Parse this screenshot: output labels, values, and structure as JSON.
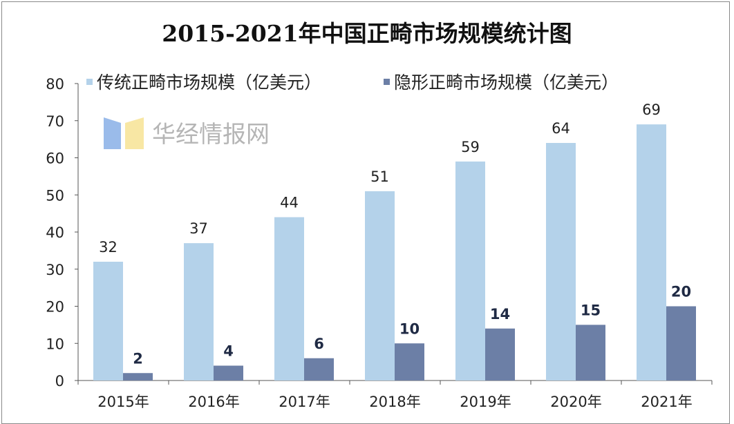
{
  "chart_data": {
    "type": "bar",
    "title": "2015-2021年中国正畸市场规模统计图",
    "categories": [
      "2015年",
      "2016年",
      "2017年",
      "2018年",
      "2019年",
      "2020年",
      "2021年"
    ],
    "series": [
      {
        "name": "传统正畸市场规模（亿美元）",
        "values": [
          32,
          37,
          44,
          51,
          59,
          64,
          69
        ],
        "color": "#b4d2ea"
      },
      {
        "name": "隐形正畸市场规模（亿美元）",
        "values": [
          2,
          4,
          6,
          10,
          14,
          15,
          20
        ],
        "color": "#6c7fa6"
      }
    ],
    "ylim": [
      0,
      80
    ],
    "yticks": [
      0,
      10,
      20,
      30,
      40,
      50,
      60,
      70,
      80
    ],
    "grid": false,
    "legend": "top",
    "xlabel": "",
    "ylabel": ""
  },
  "watermark": "华经情报网"
}
